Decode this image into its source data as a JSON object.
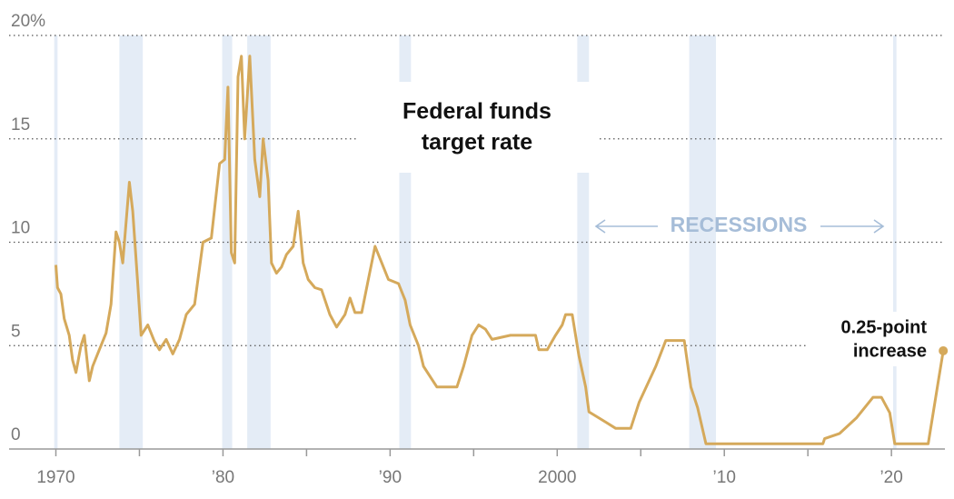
{
  "chart_data": {
    "type": "line",
    "title": [
      "Federal funds",
      "target rate"
    ],
    "recession_label": "RECESSIONS",
    "annotation": [
      "0.25-point",
      "increase"
    ],
    "recessions": [
      [
        1969.9,
        1970.1
      ],
      [
        1973.8,
        1975.2
      ],
      [
        1979.95,
        1980.55
      ],
      [
        1981.45,
        1982.85
      ],
      [
        1990.55,
        1991.25
      ],
      [
        2001.2,
        2001.9
      ],
      [
        2007.9,
        2009.5
      ],
      [
        2020.1,
        2020.3
      ]
    ],
    "recession_color": "#e4ecf6",
    "x": [
      1970.0,
      1970.1,
      1970.3,
      1970.5,
      1970.8,
      1971.0,
      1971.2,
      1971.5,
      1971.7,
      1972.0,
      1972.2,
      1972.6,
      1973.0,
      1973.3,
      1973.6,
      1973.8,
      1974.0,
      1974.4,
      1974.6,
      1974.9,
      1975.1,
      1975.5,
      1975.9,
      1976.2,
      1976.6,
      1977.0,
      1977.4,
      1977.8,
      1978.3,
      1978.8,
      1979.3,
      1979.8,
      1980.1,
      1980.3,
      1980.5,
      1980.7,
      1980.9,
      1981.1,
      1981.3,
      1981.6,
      1981.9,
      1982.2,
      1982.4,
      1982.7,
      1982.9,
      1983.2,
      1983.5,
      1983.8,
      1984.2,
      1984.5,
      1984.8,
      1985.1,
      1985.5,
      1985.9,
      1986.4,
      1986.8,
      1987.3,
      1987.6,
      1987.9,
      1988.3,
      1988.7,
      1989.1,
      1989.5,
      1989.9,
      1990.5,
      1990.9,
      1991.2,
      1991.7,
      1992.0,
      1992.4,
      1992.8,
      1993.5,
      1994.0,
      1994.4,
      1994.9,
      1995.3,
      1995.7,
      1996.1,
      1997.2,
      1998.7,
      1998.9,
      1999.4,
      1999.9,
      2000.3,
      2000.5,
      2000.9,
      2001.3,
      2001.7,
      2001.9,
      2002.9,
      2003.5,
      2004.4,
      2004.9,
      2005.9,
      2006.5,
      2007.6,
      2008.0,
      2008.4,
      2008.9,
      2015.9,
      2016.0,
      2016.9,
      2017.9,
      2018.9,
      2019.4,
      2019.9,
      2020.2,
      2022.2,
      2022.5,
      2022.8,
      2023.1
    ],
    "series": [
      {
        "name": "Federal funds target rate",
        "color": "#d5a95b",
        "values": [
          8.9,
          7.8,
          7.5,
          6.3,
          5.5,
          4.3,
          3.7,
          5.0,
          5.5,
          3.3,
          4.0,
          4.8,
          5.6,
          7.0,
          10.5,
          10.0,
          9.0,
          12.9,
          11.5,
          8.0,
          5.5,
          6.0,
          5.2,
          4.8,
          5.3,
          4.6,
          5.3,
          6.5,
          7.0,
          10.0,
          10.2,
          13.8,
          14.0,
          17.5,
          9.5,
          9.0,
          18.0,
          19.0,
          15.0,
          19.0,
          14.0,
          12.2,
          15.0,
          13.0,
          9.0,
          8.5,
          8.8,
          9.4,
          9.8,
          11.5,
          9.0,
          8.2,
          7.8,
          7.7,
          6.5,
          5.9,
          6.5,
          7.3,
          6.6,
          6.6,
          8.2,
          9.8,
          9.0,
          8.2,
          8.0,
          7.2,
          6.0,
          5.0,
          4.0,
          3.5,
          3.0,
          3.0,
          3.0,
          4.0,
          5.5,
          6.0,
          5.8,
          5.3,
          5.5,
          5.5,
          4.8,
          4.8,
          5.5,
          6.0,
          6.5,
          6.5,
          4.5,
          3.0,
          1.8,
          1.3,
          1.0,
          1.0,
          2.25,
          4.0,
          5.25,
          5.25,
          3.0,
          2.0,
          0.25,
          0.25,
          0.5,
          0.75,
          1.5,
          2.5,
          2.5,
          1.75,
          0.25,
          0.25,
          1.75,
          3.25,
          4.75
        ]
      }
    ],
    "xlim": [
      1967.2,
      2023.2
    ],
    "ylim": [
      0,
      20
    ],
    "yticks": [
      0,
      5,
      10,
      15,
      {
        "value": 20,
        "label": "20%"
      }
    ],
    "xticks": [
      {
        "value": 1970,
        "label": "1970"
      },
      {
        "value": 1975,
        "label": null
      },
      {
        "value": 1980,
        "label": "’80"
      },
      {
        "value": 1985,
        "label": null
      },
      {
        "value": 1990,
        "label": "’90"
      },
      {
        "value": 1995,
        "label": null
      },
      {
        "value": 2000,
        "label": "2000"
      },
      {
        "value": 2005,
        "label": null
      },
      {
        "value": 2010,
        "label": "’10"
      },
      {
        "value": 2015,
        "label": null
      },
      {
        "value": 2020,
        "label": "’20"
      }
    ],
    "grid": true
  }
}
